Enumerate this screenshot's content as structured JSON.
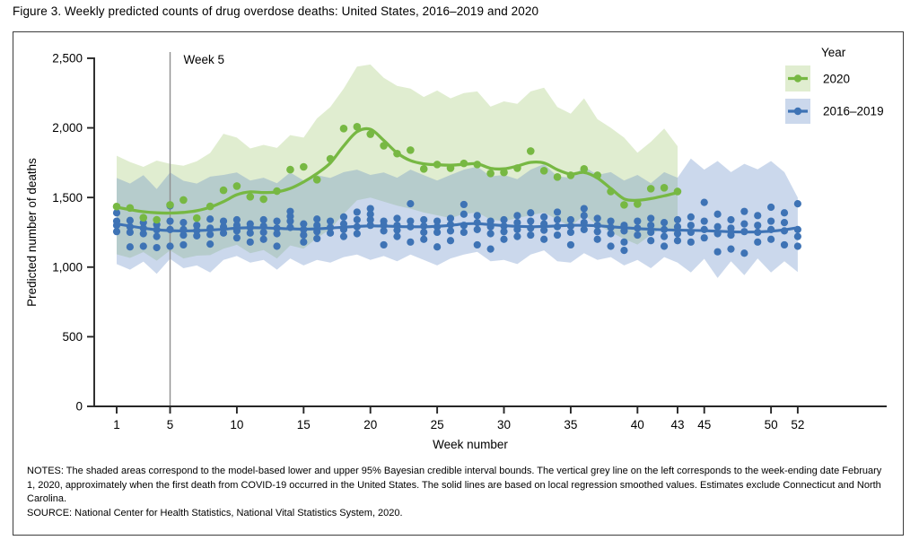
{
  "figure_title": "Figure 3. Weekly predicted counts of drug overdose deaths: United States, 2016–2019 and 2020",
  "notes": {
    "body": "NOTES: The shaded areas correspond to the model-based lower and upper 95% Bayesian credible interval bounds. The vertical grey line on the left corresponds to the week-ending date February 1, 2020, approximately when the first death from COVID-19 occurred in the United States. The solid lines are based on local regression smoothed values. Estimates exclude Connecticut and North Carolina.",
    "source": "SOURCE: National Center for Health Statistics, National Vital Statistics System, 2020."
  },
  "chart_data": {
    "type": "scatter",
    "title": "Figure 3. Weekly predicted counts of drug overdose deaths: United States, 2016–2019 and 2020",
    "xlabel": "Week number",
    "ylabel": "Predicted number of deaths",
    "xlim": [
      1,
      52
    ],
    "ylim": [
      0,
      2500
    ],
    "grid": false,
    "yticks": [
      0,
      500,
      1000,
      1500,
      2000,
      2500
    ],
    "ytick_labels": [
      "0",
      "500",
      "1,000",
      "1,500",
      "2,000",
      "2,500"
    ],
    "xticks": [
      1,
      5,
      10,
      15,
      20,
      25,
      30,
      35,
      40,
      43,
      45,
      50,
      52
    ],
    "vline": {
      "week": 5,
      "label": "Week 5",
      "color": "#8f8f8f"
    },
    "legend": {
      "title": "Year",
      "position": "top-right",
      "entries": [
        "2020",
        "2016–2019"
      ]
    },
    "colors": {
      "green": "#77b843",
      "green_fill": "rgba(152,194,100,0.30)",
      "blue": "#3e73b5",
      "blue_fill": "rgba(96,138,197,0.33)",
      "axis": "#262626"
    },
    "band_meaning": "95% Bayesian credible interval bounds",
    "series": [
      {
        "name": "2020",
        "start_week": 1,
        "points": [
          1435,
          1425,
          1355,
          1340,
          1447,
          1482,
          1352,
          1436,
          1552,
          1582,
          1505,
          1488,
          1546,
          1700,
          1720,
          1628,
          1778,
          1995,
          2008,
          1955,
          1872,
          1815,
          1840,
          1705,
          1737,
          1711,
          1745,
          1737,
          1673,
          1680,
          1711,
          1833,
          1692,
          1647,
          1659,
          1705,
          1659,
          1543,
          1447,
          1453,
          1563,
          1570,
          1543
        ],
        "smooth_line": [
          1430,
          1413,
          1398,
          1390,
          1388,
          1393,
          1405,
          1430,
          1470,
          1520,
          1540,
          1535,
          1540,
          1565,
          1612,
          1672,
          1748,
          1870,
          1972,
          1990,
          1910,
          1820,
          1765,
          1742,
          1735,
          1732,
          1738,
          1742,
          1710,
          1706,
          1726,
          1752,
          1748,
          1700,
          1668,
          1680,
          1640,
          1565,
          1490,
          1480,
          1492,
          1512,
          1535
        ],
        "band_upper": [
          1800,
          1755,
          1720,
          1765,
          1742,
          1728,
          1760,
          1820,
          1958,
          1930,
          1852,
          1878,
          1856,
          1948,
          1930,
          2068,
          2150,
          2282,
          2440,
          2455,
          2360,
          2302,
          2282,
          2222,
          2268,
          2212,
          2250,
          2262,
          2152,
          2190,
          2172,
          2262,
          2288,
          2150,
          2102,
          2212,
          2062,
          2000,
          1930,
          1822,
          1900,
          1995,
          1868
        ],
        "band_lower": [
          1092,
          1066,
          1108,
          1046,
          1120,
          1062,
          1082,
          1086,
          1132,
          1160,
          1100,
          1122,
          1062,
          1156,
          1132,
          1210,
          1272,
          1382,
          1480,
          1500,
          1470,
          1442,
          1420,
          1392,
          1372,
          1352,
          1382,
          1392,
          1342,
          1330,
          1352,
          1372,
          1392,
          1342,
          1292,
          1372,
          1302,
          1252,
          1202,
          1162,
          1232,
          1292,
          1232
        ]
      },
      {
        "name": "2016–2019",
        "start_week": 1,
        "points_per_week": [
          [
            1390,
            1330,
            1300,
            1255
          ],
          [
            1335,
            1290,
            1250,
            1145
          ],
          [
            1320,
            1280,
            1240,
            1150
          ],
          [
            1305,
            1268,
            1220,
            1140
          ],
          [
            1440,
            1330,
            1270,
            1150
          ],
          [
            1320,
            1270,
            1230,
            1160
          ],
          [
            1300,
            1262,
            1225
          ],
          [
            1345,
            1280,
            1235,
            1165
          ],
          [
            1330,
            1290,
            1245
          ],
          [
            1340,
            1300,
            1260,
            1210
          ],
          [
            1310,
            1285,
            1245,
            1180
          ],
          [
            1340,
            1295,
            1250,
            1200
          ],
          [
            1330,
            1280,
            1240,
            1150
          ],
          [
            1400,
            1365,
            1330,
            1285
          ],
          [
            1310,
            1270,
            1230,
            1180
          ],
          [
            1345,
            1300,
            1255,
            1205
          ],
          [
            1330,
            1285,
            1245
          ],
          [
            1360,
            1310,
            1270,
            1220
          ],
          [
            1395,
            1340,
            1290,
            1240
          ],
          [
            1420,
            1380,
            1340,
            1300
          ],
          [
            1330,
            1300,
            1260,
            1160
          ],
          [
            1350,
            1300,
            1265,
            1220
          ],
          [
            1455,
            1330,
            1290,
            1180
          ],
          [
            1340,
            1295,
            1250,
            1200
          ],
          [
            1330,
            1290,
            1250,
            1145
          ],
          [
            1350,
            1305,
            1260,
            1190
          ],
          [
            1450,
            1380,
            1300,
            1250
          ],
          [
            1370,
            1320,
            1270,
            1160
          ],
          [
            1330,
            1290,
            1240,
            1130
          ],
          [
            1340,
            1295,
            1255,
            1200
          ],
          [
            1370,
            1320,
            1270,
            1220
          ],
          [
            1390,
            1330,
            1280,
            1230
          ],
          [
            1360,
            1310,
            1265,
            1200
          ],
          [
            1395,
            1340,
            1290,
            1230
          ],
          [
            1340,
            1295,
            1250,
            1160
          ],
          [
            1420,
            1370,
            1320,
            1270
          ],
          [
            1350,
            1300,
            1255,
            1200
          ],
          [
            1330,
            1285,
            1240,
            1150
          ],
          [
            1300,
            1260,
            1180,
            1120
          ],
          [
            1330,
            1280,
            1230
          ],
          [
            1350,
            1300,
            1250,
            1190
          ],
          [
            1320,
            1270,
            1220,
            1150
          ],
          [
            1340,
            1290,
            1240,
            1190
          ],
          [
            1360,
            1300,
            1250,
            1180
          ],
          [
            1465,
            1330,
            1270,
            1210
          ],
          [
            1380,
            1290,
            1240,
            1110
          ],
          [
            1340,
            1280,
            1230,
            1130
          ],
          [
            1400,
            1310,
            1255,
            1100
          ],
          [
            1370,
            1300,
            1250,
            1180
          ],
          [
            1430,
            1330,
            1270,
            1200
          ],
          [
            1390,
            1320,
            1260,
            1160
          ],
          [
            1455,
            1270,
            1220,
            1150
          ]
        ],
        "smooth_line": [
          1310,
          1295,
          1280,
          1268,
          1262,
          1260,
          1262,
          1266,
          1272,
          1280,
          1283,
          1282,
          1278,
          1275,
          1273,
          1275,
          1280,
          1287,
          1292,
          1296,
          1295,
          1292,
          1290,
          1290,
          1293,
          1300,
          1310,
          1312,
          1305,
          1298,
          1293,
          1290,
          1292,
          1296,
          1300,
          1300,
          1297,
          1290,
          1283,
          1277,
          1272,
          1268,
          1266,
          1264,
          1262,
          1258,
          1254,
          1252,
          1253,
          1258,
          1268,
          1283
        ],
        "band_upper": [
          1640,
          1600,
          1660,
          1560,
          1680,
          1620,
          1600,
          1650,
          1662,
          1680,
          1622,
          1642,
          1602,
          1680,
          1622,
          1660,
          1640,
          1682,
          1700,
          1662,
          1680,
          1642,
          1700,
          1660,
          1622,
          1662,
          1700,
          1722,
          1652,
          1662,
          1632,
          1700,
          1740,
          1652,
          1642,
          1722,
          1662,
          1682,
          1622,
          1662,
          1602,
          1682,
          1642,
          1780,
          1700,
          1762,
          1682,
          1742,
          1702,
          1762,
          1682,
          1500
        ],
        "band_lower": [
          1022,
          982,
          1040,
          952,
          1060,
          992,
          1012,
          962,
          1052,
          1080,
          1032,
          1052,
          982,
          1062,
          1012,
          1052,
          1032,
          1072,
          1090,
          1052,
          1080,
          1042,
          1090,
          1052,
          1012,
          1062,
          1090,
          1110,
          1042,
          1052,
          1022,
          1090,
          1120,
          1042,
          1032,
          1100,
          1052,
          1072,
          1012,
          1052,
          992,
          1072,
          1032,
          962,
          1060,
          922,
          1042,
          942,
          1062,
          962,
          1042,
          965
        ]
      }
    ]
  }
}
